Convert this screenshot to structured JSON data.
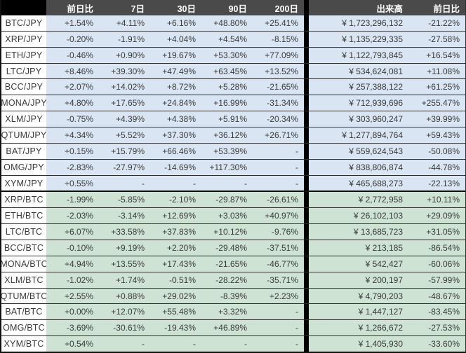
{
  "header": {
    "corner_label": "",
    "labels": [
      "前日比",
      "7日",
      "30日",
      "90日",
      "200日",
      "出来高",
      "前日比"
    ]
  },
  "colors": {
    "header_bg": "#4a4a4a",
    "header_corner_bg": "#000000",
    "header_text": "#ffffff",
    "jpy_row_bg": "#d9e5f2",
    "btc_row_bg": "#cee3d4",
    "pair_cell_bg": "#ffffff",
    "text": "#3a3a3a",
    "row_border": "#2e2e2e",
    "separator": "#000000"
  },
  "groups": [
    {
      "id": "jpy-pairs",
      "row_bg": "#d9e5f2",
      "rows": [
        {
          "pair": "BTC/JPY",
          "chg_1d": "+1.54%",
          "chg_7d": "+4.11%",
          "chg_30d": "+6.16%",
          "chg_90d": "+48.80%",
          "chg_200d": "+25.41%",
          "volume": "¥ 1,723,296,132",
          "vol_chg_1d": "-21.22%"
        },
        {
          "pair": "XRP/JPY",
          "chg_1d": "-0.20%",
          "chg_7d": "-1.91%",
          "chg_30d": "+4.04%",
          "chg_90d": "+4.54%",
          "chg_200d": "-8.15%",
          "volume": "¥ 1,135,229,335",
          "vol_chg_1d": "-27.58%"
        },
        {
          "pair": "ETH/JPY",
          "chg_1d": "-0.46%",
          "chg_7d": "+0.90%",
          "chg_30d": "+19.67%",
          "chg_90d": "+53.30%",
          "chg_200d": "+77.09%",
          "volume": "¥ 1,122,793,845",
          "vol_chg_1d": "+16.54%"
        },
        {
          "pair": "LTC/JPY",
          "chg_1d": "+8.46%",
          "chg_7d": "+39.30%",
          "chg_30d": "+47.49%",
          "chg_90d": "+63.45%",
          "chg_200d": "+13.52%",
          "volume": "¥ 534,624,081",
          "vol_chg_1d": "+11.08%"
        },
        {
          "pair": "BCC/JPY",
          "chg_1d": "+2.07%",
          "chg_7d": "+14.02%",
          "chg_30d": "+8.72%",
          "chg_90d": "+5.28%",
          "chg_200d": "-21.65%",
          "volume": "¥ 257,388,122",
          "vol_chg_1d": "+61.25%"
        },
        {
          "pair": "MONA/JPY",
          "chg_1d": "+4.80%",
          "chg_7d": "+17.65%",
          "chg_30d": "+24.84%",
          "chg_90d": "+16.99%",
          "chg_200d": "-31.34%",
          "volume": "¥ 712,939,696",
          "vol_chg_1d": "+255.47%"
        },
        {
          "pair": "XLM/JPY",
          "chg_1d": "-0.75%",
          "chg_7d": "+4.39%",
          "chg_30d": "+4.38%",
          "chg_90d": "+5.91%",
          "chg_200d": "-20.34%",
          "volume": "¥ 303,960,247",
          "vol_chg_1d": "+39.99%"
        },
        {
          "pair": "QTUM/JPY",
          "chg_1d": "+4.34%",
          "chg_7d": "+5.52%",
          "chg_30d": "+37.30%",
          "chg_90d": "+36.12%",
          "chg_200d": "+26.71%",
          "volume": "¥ 1,277,894,764",
          "vol_chg_1d": "+59.43%"
        },
        {
          "pair": "BAT/JPY",
          "chg_1d": "+0.15%",
          "chg_7d": "+15.79%",
          "chg_30d": "+66.46%",
          "chg_90d": "+53.39%",
          "chg_200d": "-",
          "volume": "¥ 559,624,543",
          "vol_chg_1d": "-50.08%"
        },
        {
          "pair": "OMG/JPY",
          "chg_1d": "-2.83%",
          "chg_7d": "-27.97%",
          "chg_30d": "-14.69%",
          "chg_90d": "+117.30%",
          "chg_200d": "-",
          "volume": "¥ 838,806,874",
          "vol_chg_1d": "-44.78%"
        },
        {
          "pair": "XYM/JPY",
          "chg_1d": "+0.55%",
          "chg_7d": "-",
          "chg_30d": "-",
          "chg_90d": "-",
          "chg_200d": "-",
          "volume": "¥ 465,688,273",
          "vol_chg_1d": "-22.13%"
        }
      ]
    },
    {
      "id": "btc-pairs",
      "row_bg": "#cee3d4",
      "rows": [
        {
          "pair": "XRP/BTC",
          "chg_1d": "-1.99%",
          "chg_7d": "-5.85%",
          "chg_30d": "-2.10%",
          "chg_90d": "-29.87%",
          "chg_200d": "-26.61%",
          "volume": "¥ 2,772,958",
          "vol_chg_1d": "+10.11%"
        },
        {
          "pair": "ETH/BTC",
          "chg_1d": "-2.03%",
          "chg_7d": "-3.14%",
          "chg_30d": "+12.69%",
          "chg_90d": "+3.03%",
          "chg_200d": "+40.97%",
          "volume": "¥ 26,102,103",
          "vol_chg_1d": "+29.09%"
        },
        {
          "pair": "LTC/BTC",
          "chg_1d": "+6.07%",
          "chg_7d": "+33.58%",
          "chg_30d": "+37.83%",
          "chg_90d": "+10.12%",
          "chg_200d": "-9.76%",
          "volume": "¥ 13,685,723",
          "vol_chg_1d": "+31.05%"
        },
        {
          "pair": "BCC/BTC",
          "chg_1d": "-0.10%",
          "chg_7d": "+9.19%",
          "chg_30d": "+2.20%",
          "chg_90d": "-29.48%",
          "chg_200d": "-37.51%",
          "volume": "¥ 213,185",
          "vol_chg_1d": "-86.54%"
        },
        {
          "pair": "MONA/BTC",
          "chg_1d": "+4.94%",
          "chg_7d": "+13.55%",
          "chg_30d": "+17.43%",
          "chg_90d": "-21.65%",
          "chg_200d": "-46.77%",
          "volume": "¥ 542,427",
          "vol_chg_1d": "-60.06%"
        },
        {
          "pair": "XLM/BTC",
          "chg_1d": "-1.02%",
          "chg_7d": "+1.74%",
          "chg_30d": "-0.51%",
          "chg_90d": "-28.22%",
          "chg_200d": "-35.71%",
          "volume": "¥ 200,197",
          "vol_chg_1d": "-57.99%"
        },
        {
          "pair": "QTUM/BTC",
          "chg_1d": "+2.55%",
          "chg_7d": "+0.88%",
          "chg_30d": "+29.02%",
          "chg_90d": "-8.39%",
          "chg_200d": "+2.23%",
          "volume": "¥ 4,790,203",
          "vol_chg_1d": "-48.67%"
        },
        {
          "pair": "BAT/BTC",
          "chg_1d": "+0.00%",
          "chg_7d": "+12.07%",
          "chg_30d": "+55.48%",
          "chg_90d": "+3.32%",
          "chg_200d": "-",
          "volume": "¥ 1,447,127",
          "vol_chg_1d": "-83.45%"
        },
        {
          "pair": "OMG/BTC",
          "chg_1d": "-3.69%",
          "chg_7d": "-30.61%",
          "chg_30d": "-19.43%",
          "chg_90d": "+46.89%",
          "chg_200d": "-",
          "volume": "¥ 1,266,672",
          "vol_chg_1d": "-27.53%"
        },
        {
          "pair": "XYM/BTC",
          "chg_1d": "+0.54%",
          "chg_7d": "-",
          "chg_30d": "-",
          "chg_90d": "-",
          "chg_200d": "-",
          "volume": "¥ 1,405,930",
          "vol_chg_1d": "-33.60%"
        }
      ]
    }
  ]
}
